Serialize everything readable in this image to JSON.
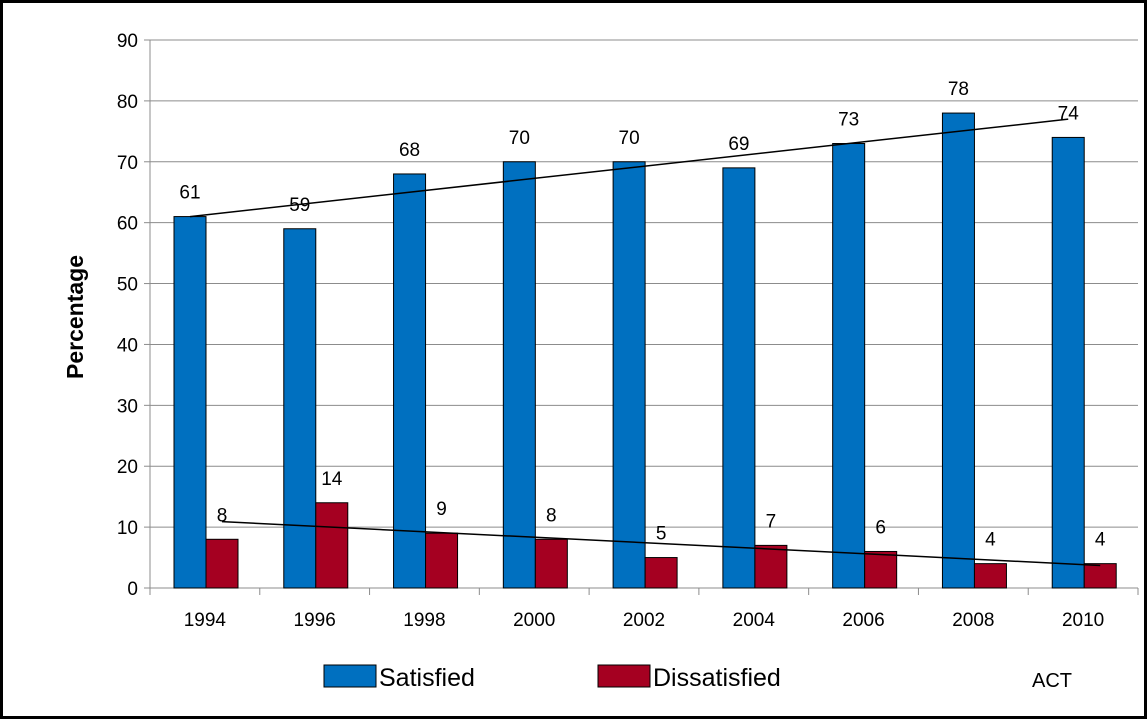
{
  "chart_data": {
    "type": "bar",
    "categories": [
      "1994",
      "1996",
      "1998",
      "2000",
      "2002",
      "2004",
      "2006",
      "2008",
      "2010"
    ],
    "series": [
      {
        "name": "Satisfied",
        "color": "#0070C0",
        "values": [
          61,
          59,
          68,
          70,
          70,
          69,
          73,
          78,
          74
        ]
      },
      {
        "name": "Dissatisfied",
        "color": "#A50021",
        "values": [
          8,
          14,
          9,
          8,
          5,
          7,
          6,
          4,
          4
        ]
      }
    ],
    "trendlines": [
      {
        "series": "Satisfied",
        "type": "linear",
        "from": 61,
        "to": 77
      },
      {
        "series": "Dissatisfied",
        "type": "linear",
        "from": 10.9,
        "to": 3.7
      }
    ],
    "title": "",
    "xlabel": "",
    "ylabel": "Percentage",
    "ylim": [
      0,
      90
    ],
    "yticks": [
      "0",
      "10",
      "20",
      "30",
      "40",
      "50",
      "60",
      "70",
      "80",
      "90"
    ],
    "grid": true,
    "legend": "bottom",
    "data_labels": true,
    "source_note": "ACT"
  }
}
